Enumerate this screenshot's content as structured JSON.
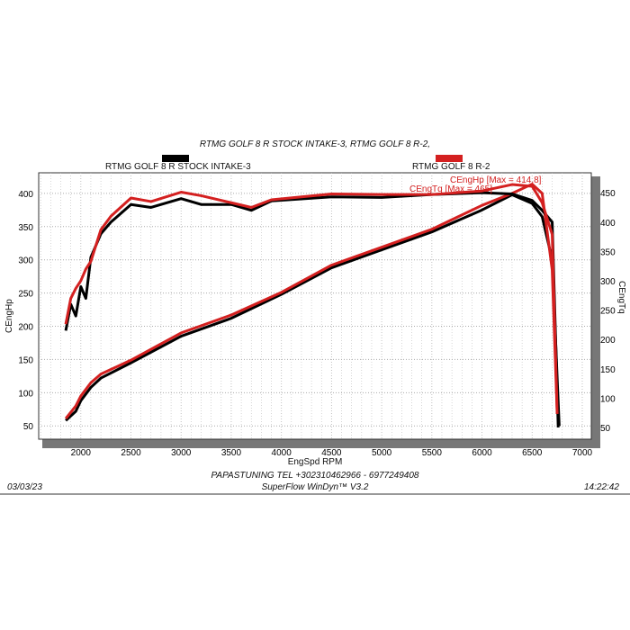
{
  "chart_data": {
    "type": "line",
    "title": "RTMG GOLF 8 R STOCK INTAKE-3, RTMG GOLF 8 R-2,",
    "xlabel": "EngSpd  RPM",
    "ylabel_left": "CEngHp",
    "ylabel_right": "CEngTq",
    "xlim": [
      1580,
      7090
    ],
    "ylim_left": [
      30,
      431
    ],
    "ylim_right": [
      30,
      484
    ],
    "x_ticks": [
      2000,
      2500,
      3000,
      3500,
      4000,
      4500,
      5000,
      5500,
      6000,
      6500,
      7000
    ],
    "y_ticks_left": [
      50,
      100,
      150,
      200,
      250,
      300,
      350,
      400
    ],
    "y_ticks_right": [
      50,
      100,
      150,
      200,
      250,
      300,
      350,
      400,
      450
    ],
    "grid": true,
    "legend": [
      {
        "name": "RTMG GOLF 8 R STOCK INTAKE-3",
        "color": "#000000"
      },
      {
        "name": "RTMG GOLF 8 R-2",
        "color": "#d42020"
      }
    ],
    "annotations": [
      "CEngHp [Max = 414.8]",
      "CEngTq [Max = 465]"
    ],
    "series": [
      {
        "run": "RTMG GOLF 8 R STOCK INTAKE-3",
        "quantity": "CEngHp",
        "axis": "left",
        "color": "#000000",
        "x": [
          1850,
          1950,
          2000,
          2100,
          2200,
          2500,
          3000,
          3500,
          4000,
          4500,
          5000,
          5500,
          6000,
          6300,
          6500,
          6600,
          6700,
          6770
        ],
        "y": [
          58,
          72,
          88,
          108,
          122,
          145,
          185,
          212,
          248,
          288,
          315,
          342,
          375,
          398,
          385,
          365,
          300,
          50
        ]
      },
      {
        "run": "RTMG GOLF 8 R-2",
        "quantity": "CEngHp",
        "axis": "left",
        "color": "#d42020",
        "x": [
          1850,
          1950,
          2000,
          2100,
          2200,
          2500,
          3000,
          3500,
          4000,
          4500,
          5000,
          5500,
          6000,
          6300,
          6500,
          6600,
          6700,
          6750
        ],
        "y": [
          61,
          80,
          95,
          115,
          128,
          149,
          190,
          217,
          251,
          292,
          319,
          346,
          382,
          400,
          414,
          400,
          285,
          68
        ]
      },
      {
        "run": "RTMG GOLF 8 R STOCK INTAKE-3",
        "quantity": "CEngTq",
        "axis": "right",
        "color": "#000000",
        "x": [
          1850,
          1900,
          1950,
          2000,
          2050,
          2100,
          2200,
          2300,
          2500,
          2700,
          3000,
          3200,
          3500,
          3700,
          3900,
          4500,
          5000,
          5500,
          6000,
          6300,
          6500,
          6600,
          6700,
          6760
        ],
        "y": [
          215,
          260,
          240,
          290,
          270,
          340,
          380,
          400,
          430,
          425,
          440,
          430,
          430,
          420,
          436,
          443,
          442,
          447,
          450,
          448,
          437,
          420,
          400,
          50
        ]
      },
      {
        "run": "RTMG GOLF 8 R-2",
        "quantity": "CEngTq",
        "axis": "right",
        "color": "#d42020",
        "x": [
          1850,
          1900,
          1950,
          2000,
          2050,
          2100,
          2200,
          2300,
          2500,
          2700,
          3000,
          3200,
          3500,
          3700,
          3900,
          4500,
          5000,
          5500,
          6000,
          6300,
          6500,
          6600,
          6700,
          6750
        ],
        "y": [
          226,
          270,
          287,
          300,
          320,
          333,
          387,
          410,
          441,
          435,
          451,
          445,
          433,
          425,
          438,
          448,
          447,
          447,
          453,
          464,
          461,
          433,
          379,
          73
        ]
      }
    ]
  },
  "footer": {
    "company": "PAPASTUNING TEL +302310462966 - 6977249408",
    "software": "SuperFlow WinDyn™ V3.2",
    "date": "03/03/23",
    "time": "14:22:42"
  }
}
